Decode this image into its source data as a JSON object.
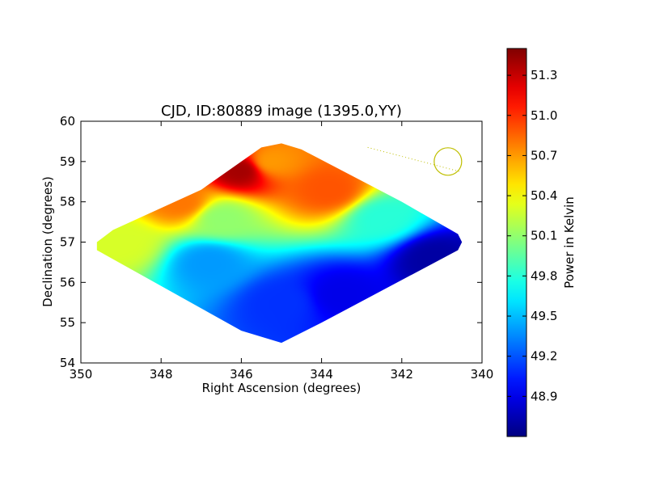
{
  "chart_data": {
    "type": "heatmap",
    "title": "CJD, ID:80889 image (1395.0,YY)",
    "xlabel": "Right Ascension (degrees)",
    "ylabel": "Declination (degrees)",
    "xlim": [
      350,
      340
    ],
    "ylim": [
      54,
      60
    ],
    "x_ticks": [
      "350",
      "348",
      "346",
      "344",
      "342",
      "340"
    ],
    "y_ticks": [
      "54",
      "55",
      "56",
      "57",
      "58",
      "59",
      "60"
    ],
    "colorbar": {
      "label": "Power in Kelvin",
      "range": [
        48.6,
        51.5
      ],
      "ticks": [
        "48.9",
        "49.2",
        "49.5",
        "49.8",
        "50.1",
        "50.4",
        "50.7",
        "51.0",
        "51.3"
      ],
      "colormap": "jet"
    },
    "map_region": [
      [
        349.6,
        57.0
      ],
      [
        349.2,
        57.3
      ],
      [
        347.0,
        58.3
      ],
      [
        345.5,
        59.35
      ],
      [
        345.0,
        59.45
      ],
      [
        344.5,
        59.3
      ],
      [
        342.0,
        58.0
      ],
      [
        340.6,
        57.2
      ],
      [
        340.5,
        57.0
      ],
      [
        340.6,
        56.8
      ],
      [
        344.0,
        55.0
      ],
      [
        345.0,
        54.5
      ],
      [
        346.0,
        54.8
      ],
      [
        349.6,
        56.8
      ]
    ],
    "features": [
      {
        "ra": 346.0,
        "dec": 58.8,
        "power": 51.4
      },
      {
        "ra": 345.3,
        "dec": 59.0,
        "power": 50.7
      },
      {
        "ra": 343.8,
        "dec": 58.3,
        "power": 50.9
      },
      {
        "ra": 347.5,
        "dec": 58.0,
        "power": 50.8
      },
      {
        "ra": 349.0,
        "dec": 57.0,
        "power": 50.3
      },
      {
        "ra": 346.5,
        "dec": 57.6,
        "power": 50.1
      },
      {
        "ra": 342.5,
        "dec": 57.6,
        "power": 49.8
      },
      {
        "ra": 346.8,
        "dec": 56.5,
        "power": 49.4
      },
      {
        "ra": 345.0,
        "dec": 55.5,
        "power": 49.1
      },
      {
        "ra": 343.5,
        "dec": 55.7,
        "power": 48.9
      },
      {
        "ra": 341.2,
        "dec": 56.6,
        "power": 48.7
      }
    ],
    "overlay": {
      "line": {
        "from": [
          342.85,
          59.35
        ],
        "to": [
          340.55,
          58.75
        ]
      },
      "circle": {
        "center": [
          340.85,
          59.0
        ]
      }
    },
    "grid": false
  }
}
